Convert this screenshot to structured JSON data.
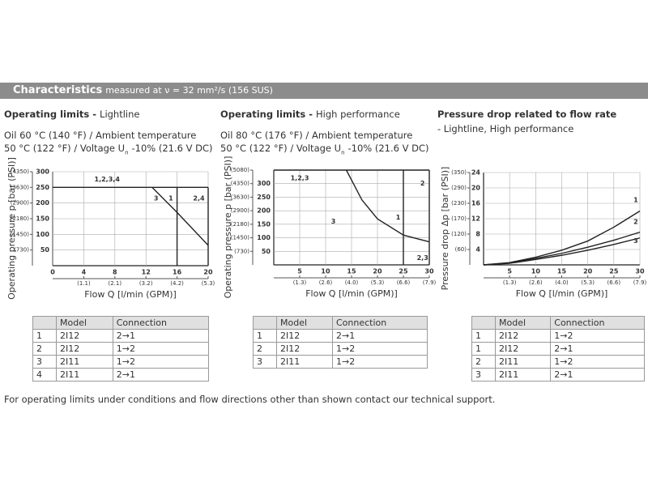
{
  "header": {
    "title": "Characteristics",
    "subtitle": "measured at ν = 32 mm²/s (156 SUS)"
  },
  "panels": [
    {
      "title": "Operating limits -",
      "title_note": "Lightline",
      "conditions": [
        "Oil 60 °C (140 °F) / Ambient temperature",
        "50 °C (122 °F) / Voltage U",
        "n",
        "-10% (21.6 V DC)"
      ],
      "chart": {
        "type": "line",
        "ylabel": "Operating pressure p [bar (PSI)]",
        "xlabel": "Flow Q [l/min (GPM)]",
        "xlim": [
          0,
          20
        ],
        "xticks": [
          0,
          4,
          8,
          12,
          16,
          20
        ],
        "x2ticks": [
          {
            "value": 4,
            "label": "(1.1)"
          },
          {
            "value": 8,
            "label": "(2.1)"
          },
          {
            "value": 12,
            "label": "(3.2)"
          },
          {
            "value": 16,
            "label": "(4.2)"
          },
          {
            "value": 20,
            "label": "(5.3)"
          }
        ],
        "ylim": [
          0,
          300
        ],
        "yticks": [
          50,
          100,
          150,
          200,
          250,
          300
        ],
        "y2ticks": [
          {
            "value": 50,
            "label": "(730)"
          },
          {
            "value": 100,
            "label": "(1450)"
          },
          {
            "value": 150,
            "label": "(2180)"
          },
          {
            "value": 200,
            "label": "(2900)"
          },
          {
            "value": 250,
            "label": "(3630)"
          },
          {
            "value": 300,
            "label": "(4350)"
          }
        ],
        "grid": true,
        "series": [
          {
            "name": "1,2,3,4",
            "x": [
              0,
              20
            ],
            "y": [
              250,
              250
            ]
          },
          {
            "name": "3",
            "x": [
              12.8,
              16,
              20
            ],
            "y": [
              250,
              170,
              65
            ]
          },
          {
            "name": "1",
            "x": [
              16,
              16
            ],
            "y": [
              250,
              0
            ]
          },
          {
            "name": "2,4",
            "x": [
              20,
              20
            ],
            "y": [
              250,
              0
            ]
          }
        ]
      },
      "table": {
        "columns": [
          "Model",
          "Connection"
        ],
        "rows": [
          [
            "1",
            "2I12",
            "2→1"
          ],
          [
            "2",
            "2I12",
            "1→2"
          ],
          [
            "3",
            "2I11",
            "1→2"
          ],
          [
            "4",
            "2I11",
            "2→1"
          ]
        ]
      }
    },
    {
      "title": "Operating limits -",
      "title_note": "High performance",
      "conditions": [
        "Oil 80 °C (176 °F) / Ambient temperature",
        "50 °C (122 °F) / Voltage U",
        "n",
        "-10% (21.6 V DC)"
      ],
      "chart": {
        "type": "line",
        "ylabel": "Operating pressure p [bar (PSI)]",
        "xlabel": "Flow Q [l/min (GPM)]",
        "xlim": [
          0,
          30
        ],
        "xticks": [
          5,
          10,
          15,
          20,
          25,
          30
        ],
        "x2ticks": [
          {
            "value": 5,
            "label": "(1.3)"
          },
          {
            "value": 10,
            "label": "(2.6)"
          },
          {
            "value": 15,
            "label": "(4.0)"
          },
          {
            "value": 20,
            "label": "(5.3)"
          },
          {
            "value": 25,
            "label": "(6.6)"
          },
          {
            "value": 30,
            "label": "(7.9)"
          }
        ],
        "ylim": [
          0,
          350
        ],
        "yticks": [
          50,
          100,
          150,
          200,
          250,
          300
        ],
        "y2ticks": [
          {
            "value": 50,
            "label": "(730)"
          },
          {
            "value": 100,
            "label": "(1450)"
          },
          {
            "value": 150,
            "label": "(2180)"
          },
          {
            "value": 200,
            "label": "(2900)"
          },
          {
            "value": 250,
            "label": "(3630)"
          },
          {
            "value": 300,
            "label": "(4350)"
          },
          {
            "value": 350,
            "label": "(5080)"
          }
        ],
        "grid": true,
        "series": [
          {
            "name": "1,2,3",
            "x": [
              0,
              30
            ],
            "y": [
              350,
              350
            ]
          },
          {
            "name": "3",
            "x": [
              14,
              17,
              20,
              25,
              30
            ],
            "y": [
              350,
              240,
              170,
              110,
              85
            ]
          },
          {
            "name": "1",
            "x": [
              25,
              25
            ],
            "y": [
              350,
              0
            ]
          },
          {
            "name": "2",
            "x": [
              30,
              30
            ],
            "y": [
              350,
              85
            ]
          },
          {
            "name": "2,3",
            "x": [
              30,
              30
            ],
            "y": [
              85,
              0
            ]
          }
        ]
      },
      "table": {
        "columns": [
          "Model",
          "Connection"
        ],
        "rows": [
          [
            "1",
            "2I12",
            "2→1"
          ],
          [
            "2",
            "2I12",
            "1→2"
          ],
          [
            "3",
            "2I11",
            "1→2"
          ]
        ]
      }
    },
    {
      "title": "Pressure drop related to flow rate",
      "title_note": "- Lightline, High performance",
      "chart": {
        "type": "line",
        "ylabel": "Pressure drop Δp [bar (PSI)]",
        "xlabel": "Flow Q [l/min (GPM)]",
        "xlim": [
          0,
          30
        ],
        "xticks": [
          5,
          10,
          15,
          20,
          25,
          30
        ],
        "x2ticks": [
          {
            "value": 5,
            "label": "(1.3)"
          },
          {
            "value": 10,
            "label": "(2.6)"
          },
          {
            "value": 15,
            "label": "(4.0)"
          },
          {
            "value": 20,
            "label": "(5.3)"
          },
          {
            "value": 25,
            "label": "(6.6)"
          },
          {
            "value": 30,
            "label": "(7.9)"
          }
        ],
        "ylim": [
          0,
          24
        ],
        "yticks": [
          4,
          8,
          12,
          16,
          20,
          24
        ],
        "y2ticks": [
          {
            "value": 4,
            "label": "(60)"
          },
          {
            "value": 8,
            "label": "(120)"
          },
          {
            "value": 12,
            "label": "(170)"
          },
          {
            "value": 16,
            "label": "(230)"
          },
          {
            "value": 20,
            "label": "(290)"
          },
          {
            "value": 24,
            "label": "(350)"
          }
        ],
        "grid": true,
        "series": [
          {
            "name": "1",
            "x": [
              0,
              5,
              10,
              15,
              20,
              25,
              30
            ],
            "y": [
              0,
              0.6,
              2,
              3.8,
              6.2,
              9.8,
              14
            ]
          },
          {
            "name": "2",
            "x": [
              0,
              5,
              10,
              15,
              20,
              25,
              30
            ],
            "y": [
              0,
              0.5,
              1.7,
              3,
              4.6,
              6.4,
              8.5
            ]
          },
          {
            "name": "3",
            "x": [
              0,
              5,
              10,
              15,
              20,
              25,
              30
            ],
            "y": [
              0,
              0.4,
              1.4,
              2.5,
              3.8,
              5.3,
              7
            ]
          }
        ]
      },
      "table": {
        "columns": [
          "Model",
          "Connection"
        ],
        "rows": [
          [
            "1",
            "2I12",
            "1→2"
          ],
          [
            "1",
            "2I12",
            "2→1"
          ],
          [
            "2",
            "2I11",
            "1→2"
          ],
          [
            "3",
            "2I11",
            "2→1"
          ]
        ]
      }
    }
  ],
  "note": "For operating limits under conditions and flow directions other than shown contact our technical support."
}
